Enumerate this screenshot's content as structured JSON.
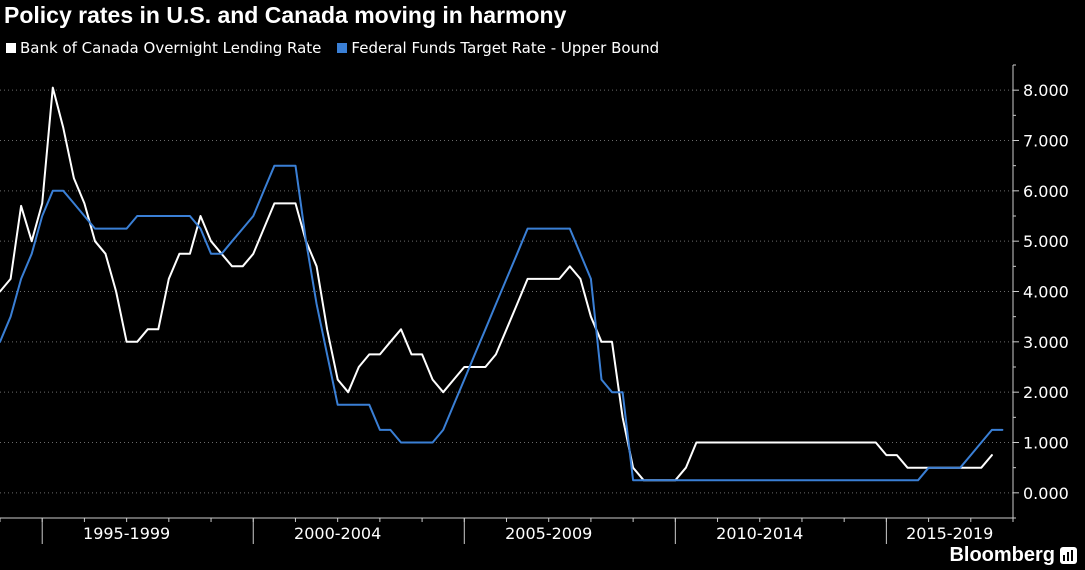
{
  "colors": {
    "background": "#000000",
    "axis": "#cccccc",
    "grid": "#6b6b6b",
    "text": "#ffffff"
  },
  "brand": {
    "name": "Bloomberg",
    "icon": "bar-chart-icon"
  },
  "chart_data": {
    "type": "line",
    "title": "Policy rates in U.S. and Canada moving in harmony",
    "xlabel": "",
    "ylabel": "",
    "x_axis": {
      "type": "time",
      "range": [
        1994.0,
        2018.0
      ],
      "period_labels": [
        "1995-1999",
        "2000-2004",
        "2005-2009",
        "2010-2014",
        "2015-2019"
      ],
      "period_label_positions": [
        1997.0,
        2002.0,
        2007.0,
        2012.0,
        2016.5
      ],
      "major_ticks": [
        1995.0,
        2000.0,
        2005.0,
        2010.0,
        2015.0
      ]
    },
    "y_axis": {
      "side": "right",
      "range": [
        -0.5,
        8.5
      ],
      "ticks": [
        0,
        1,
        2,
        3,
        4,
        5,
        6,
        7,
        8
      ],
      "tick_labels": [
        "0.000",
        "1.000",
        "2.000",
        "3.000",
        "4.000",
        "5.000",
        "6.000",
        "7.000",
        "8.000"
      ]
    },
    "grid": "horizontal-dotted",
    "legend_placement": "top-left",
    "series": [
      {
        "name": "Bank of Canada Overnight Lending Rate",
        "color": "#ffffff",
        "points": [
          [
            1994.0,
            4.0
          ],
          [
            1994.25,
            4.25
          ],
          [
            1994.5,
            5.7
          ],
          [
            1994.75,
            5.0
          ],
          [
            1995.0,
            5.75
          ],
          [
            1995.25,
            8.05
          ],
          [
            1995.5,
            7.25
          ],
          [
            1995.75,
            6.25
          ],
          [
            1996.0,
            5.75
          ],
          [
            1996.25,
            5.0
          ],
          [
            1996.5,
            4.75
          ],
          [
            1996.75,
            4.0
          ],
          [
            1997.0,
            3.0
          ],
          [
            1997.25,
            3.0
          ],
          [
            1997.5,
            3.25
          ],
          [
            1997.75,
            3.25
          ],
          [
            1998.0,
            4.25
          ],
          [
            1998.25,
            4.75
          ],
          [
            1998.5,
            4.75
          ],
          [
            1998.75,
            5.5
          ],
          [
            1999.0,
            5.0
          ],
          [
            1999.25,
            4.75
          ],
          [
            1999.5,
            4.5
          ],
          [
            1999.75,
            4.5
          ],
          [
            2000.0,
            4.75
          ],
          [
            2000.25,
            5.25
          ],
          [
            2000.5,
            5.75
          ],
          [
            2000.75,
            5.75
          ],
          [
            2001.0,
            5.75
          ],
          [
            2001.25,
            5.0
          ],
          [
            2001.5,
            4.5
          ],
          [
            2001.75,
            3.25
          ],
          [
            2002.0,
            2.25
          ],
          [
            2002.25,
            2.0
          ],
          [
            2002.5,
            2.5
          ],
          [
            2002.75,
            2.75
          ],
          [
            2003.0,
            2.75
          ],
          [
            2003.25,
            3.0
          ],
          [
            2003.5,
            3.25
          ],
          [
            2003.75,
            2.75
          ],
          [
            2004.0,
            2.75
          ],
          [
            2004.25,
            2.25
          ],
          [
            2004.5,
            2.0
          ],
          [
            2004.75,
            2.25
          ],
          [
            2005.0,
            2.5
          ],
          [
            2005.5,
            2.5
          ],
          [
            2005.75,
            2.75
          ],
          [
            2006.0,
            3.25
          ],
          [
            2006.25,
            3.75
          ],
          [
            2006.5,
            4.25
          ],
          [
            2007.0,
            4.25
          ],
          [
            2007.25,
            4.25
          ],
          [
            2007.5,
            4.5
          ],
          [
            2007.75,
            4.25
          ],
          [
            2008.0,
            3.5
          ],
          [
            2008.25,
            3.0
          ],
          [
            2008.5,
            3.0
          ],
          [
            2008.75,
            1.5
          ],
          [
            2009.0,
            0.5
          ],
          [
            2009.25,
            0.25
          ],
          [
            2010.0,
            0.25
          ],
          [
            2010.25,
            0.5
          ],
          [
            2010.5,
            1.0
          ],
          [
            2014.75,
            1.0
          ],
          [
            2015.0,
            0.75
          ],
          [
            2015.25,
            0.75
          ],
          [
            2015.5,
            0.5
          ],
          [
            2017.25,
            0.5
          ],
          [
            2017.5,
            0.75
          ]
        ]
      },
      {
        "name": "Federal Funds Target Rate - Upper Bound",
        "color": "#3a7fd5",
        "points": [
          [
            1994.0,
            3.0
          ],
          [
            1994.25,
            3.5
          ],
          [
            1994.5,
            4.25
          ],
          [
            1994.75,
            4.75
          ],
          [
            1995.0,
            5.5
          ],
          [
            1995.25,
            6.0
          ],
          [
            1995.5,
            6.0
          ],
          [
            1995.75,
            5.75
          ],
          [
            1996.0,
            5.5
          ],
          [
            1996.25,
            5.25
          ],
          [
            1997.0,
            5.25
          ],
          [
            1997.25,
            5.5
          ],
          [
            1998.5,
            5.5
          ],
          [
            1998.75,
            5.25
          ],
          [
            1999.0,
            4.75
          ],
          [
            1999.25,
            4.75
          ],
          [
            1999.5,
            5.0
          ],
          [
            1999.75,
            5.25
          ],
          [
            2000.0,
            5.5
          ],
          [
            2000.25,
            6.0
          ],
          [
            2000.5,
            6.5
          ],
          [
            2001.0,
            6.5
          ],
          [
            2001.25,
            5.0
          ],
          [
            2001.5,
            3.75
          ],
          [
            2001.75,
            2.75
          ],
          [
            2002.0,
            1.75
          ],
          [
            2002.75,
            1.75
          ],
          [
            2003.0,
            1.25
          ],
          [
            2003.25,
            1.25
          ],
          [
            2003.5,
            1.0
          ],
          [
            2004.25,
            1.0
          ],
          [
            2004.5,
            1.25
          ],
          [
            2004.75,
            1.75
          ],
          [
            2005.0,
            2.25
          ],
          [
            2005.25,
            2.75
          ],
          [
            2005.5,
            3.25
          ],
          [
            2005.75,
            3.75
          ],
          [
            2006.0,
            4.25
          ],
          [
            2006.25,
            4.75
          ],
          [
            2006.5,
            5.25
          ],
          [
            2007.5,
            5.25
          ],
          [
            2007.75,
            4.75
          ],
          [
            2008.0,
            4.25
          ],
          [
            2008.25,
            2.25
          ],
          [
            2008.5,
            2.0
          ],
          [
            2008.75,
            2.0
          ],
          [
            2009.0,
            0.25
          ],
          [
            2015.75,
            0.25
          ],
          [
            2016.0,
            0.5
          ],
          [
            2016.75,
            0.5
          ],
          [
            2017.0,
            0.75
          ],
          [
            2017.25,
            1.0
          ],
          [
            2017.5,
            1.25
          ],
          [
            2017.75,
            1.25
          ]
        ]
      }
    ]
  }
}
